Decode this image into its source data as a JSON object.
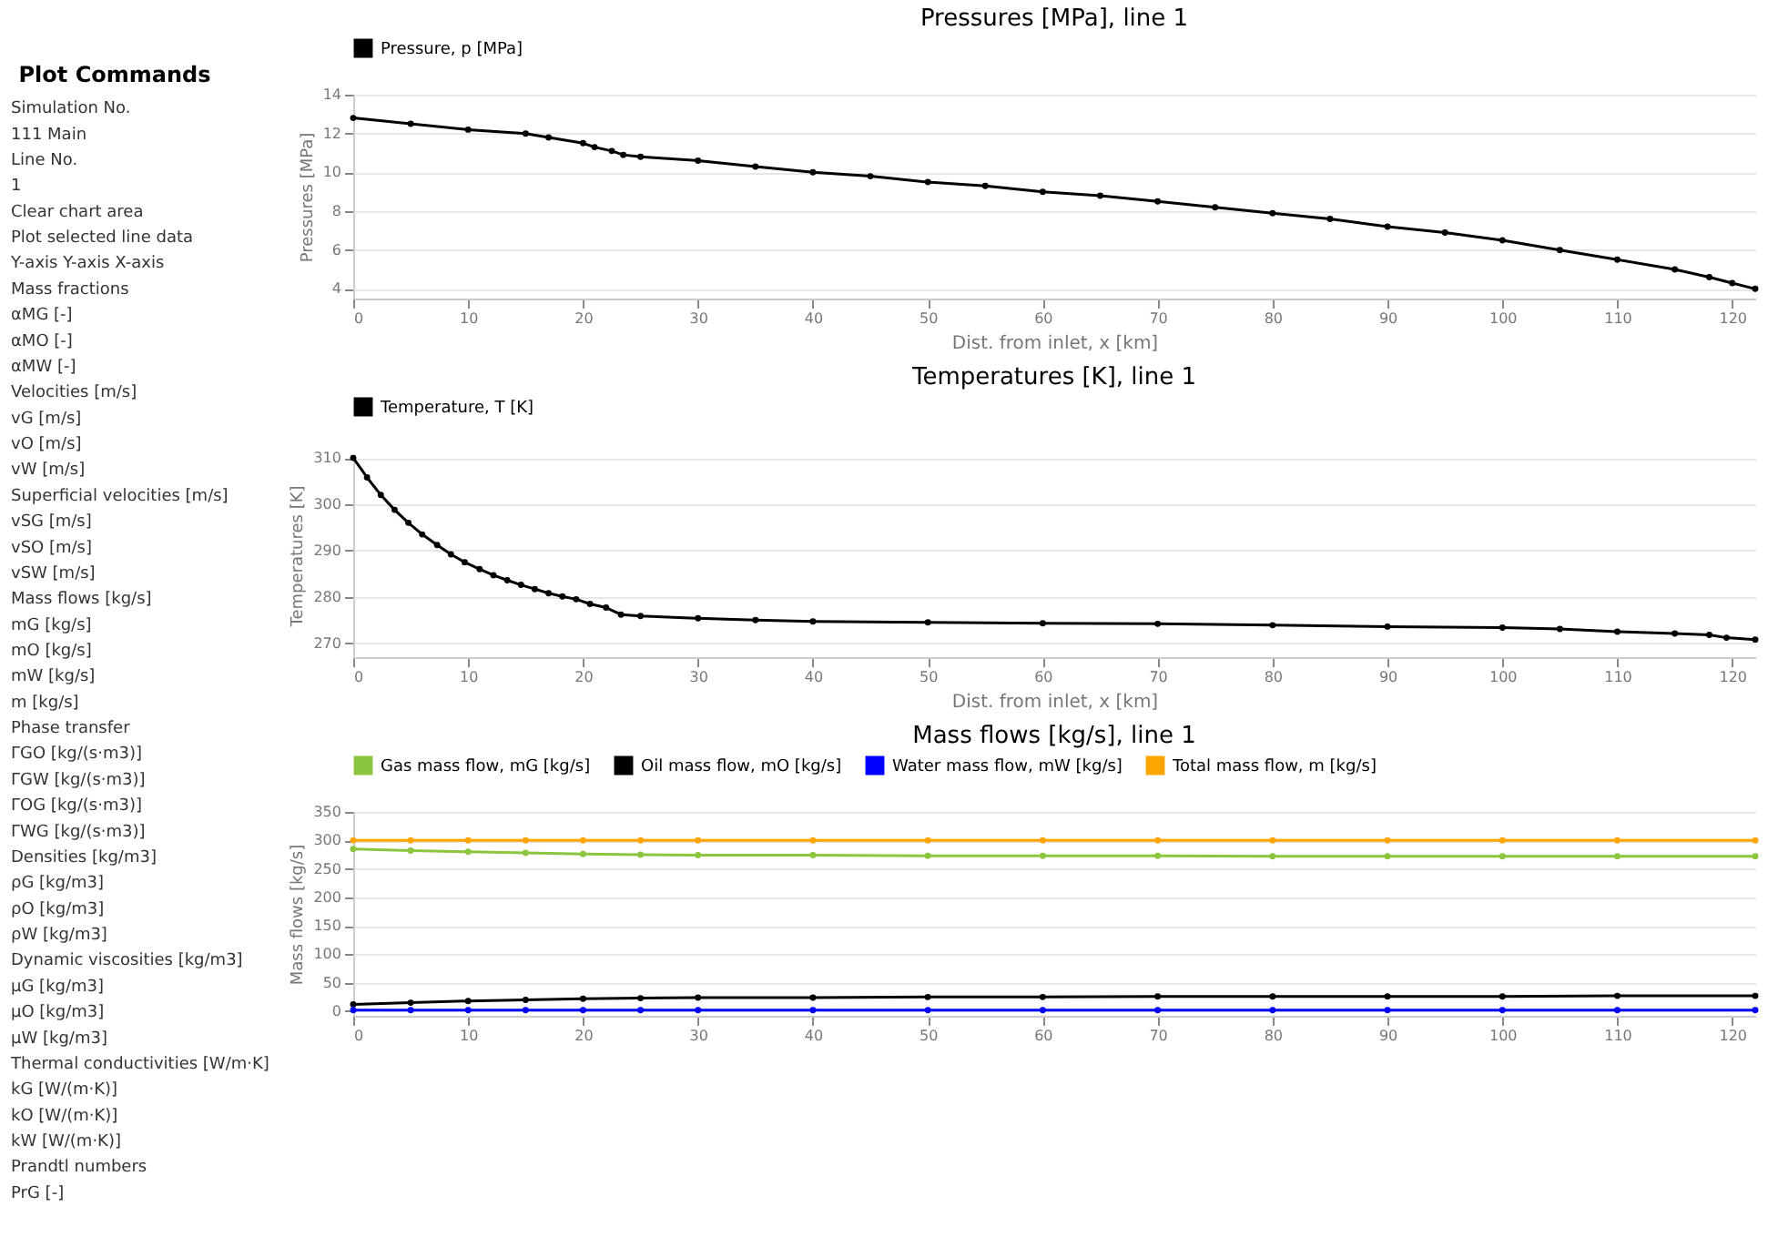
{
  "chart_data": [
    {
      "type": "other",
      "title": "Plot Commands",
      "annotations": [
        "Simulation No.",
        "111 Main",
        "Line No.",
        "1",
        "Clear chart area",
        "Plot selected line data",
        "Y-axis   Y-axis   X-axis",
        "Mass fractions",
        "αMG [-]",
        "αMO [-]",
        "αMW [-]",
        "Velocities [m/s]",
        "vG [m/s]",
        "vO [m/s]",
        "vW [m/s]",
        "Superficial velocities [m/s]",
        "vSG [m/s]",
        "vSO [m/s]",
        "vSW [m/s]",
        "Mass flows [kg/s]",
        "mG [kg/s]",
        "mO [kg/s]",
        "mW [kg/s]",
        "m [kg/s]",
        "Phase transfer",
        "ΓGO [kg/(s·m3)]",
        "ΓGW [kg/(s·m3)]",
        "ΓOG [kg/(s·m3)]",
        "ΓWG [kg/(s·m3)]",
        "Densities [kg/m3]",
        "ρG [kg/m3]",
        "ρO [kg/m3]",
        "ρW [kg/m3]",
        "Dynamic viscosities [kg/m3]",
        "μG [kg/m3]",
        "μO [kg/m3]",
        "μW [kg/m3]",
        "Thermal conductivities [W/m·K]",
        "kG [W/(m·K)]",
        "kO [W/(m·K)]",
        "kW [W/(m·K)]",
        "Prandtl numbers",
        "PrG [-]"
      ]
    },
    {
      "type": "line",
      "title": "Pressures [MPa], line 1",
      "xlabel": "Dist. from inlet, x [km]",
      "ylabel": "Pressures [MPa]",
      "xlim": [
        0,
        122
      ],
      "xticks": [
        0,
        10,
        20,
        30,
        40,
        50,
        60,
        70,
        80,
        90,
        100,
        110,
        120
      ],
      "ylim": [
        3.5,
        14
      ],
      "yticks": [
        4,
        6,
        8,
        10,
        12,
        14
      ],
      "grid": "y",
      "legend": "top",
      "marker": "circle",
      "line_style": "solid",
      "x": [
        0,
        5,
        10,
        15,
        17,
        20,
        21,
        22.5,
        23.5,
        25,
        30,
        35,
        40,
        45,
        50,
        55,
        60,
        65,
        70,
        75,
        80,
        85,
        90,
        95,
        100,
        105,
        110,
        115,
        118,
        120,
        122
      ],
      "series": [
        {
          "name": "Pressure, p [MPa]",
          "color": "#000000",
          "values": [
            12.8,
            12.5,
            12.2,
            12.0,
            11.8,
            11.5,
            11.3,
            11.1,
            10.9,
            10.8,
            10.6,
            10.3,
            10.0,
            9.8,
            9.5,
            9.3,
            9.0,
            8.8,
            8.5,
            8.2,
            7.9,
            7.6,
            7.2,
            6.9,
            6.5,
            6.0,
            5.5,
            5.0,
            4.6,
            4.3,
            4.0
          ]
        }
      ]
    },
    {
      "type": "line",
      "title": "Temperatures [K], line 1",
      "xlabel": "Dist. from inlet, x [km]",
      "ylabel": "Temperatures [K]",
      "xlim": [
        0,
        122
      ],
      "xticks": [
        0,
        10,
        20,
        30,
        40,
        50,
        60,
        70,
        80,
        90,
        100,
        110,
        120
      ],
      "ylim": [
        267,
        311
      ],
      "yticks": [
        270,
        280,
        290,
        300,
        310
      ],
      "grid": "y",
      "legend": "top",
      "marker": "circle",
      "line_style": "solid",
      "x": [
        0,
        1.2,
        2.4,
        3.6,
        4.8,
        6,
        7.3,
        8.5,
        9.7,
        11,
        12.2,
        13.4,
        14.6,
        15.8,
        17,
        18.2,
        19.4,
        20.6,
        22,
        23.3,
        25,
        30,
        35,
        40,
        50,
        60,
        70,
        80,
        90,
        100,
        105,
        110,
        115,
        118,
        119.5,
        122
      ],
      "series": [
        {
          "name": "Temperature, T [K]",
          "color": "#000000",
          "values": [
            310,
            305.8,
            302,
            298.8,
            296,
            293.5,
            291.2,
            289.2,
            287.5,
            286,
            284.7,
            283.6,
            282.6,
            281.7,
            280.8,
            280.1,
            279.5,
            278.5,
            277.7,
            276.2,
            275.9,
            275.4,
            275,
            274.7,
            274.5,
            274.3,
            274.2,
            273.9,
            273.6,
            273.4,
            273.1,
            272.5,
            272.1,
            271.8,
            271.2,
            270.8
          ]
        }
      ]
    },
    {
      "type": "line",
      "title": "Mass flows [kg/s], line 1",
      "ylabel": "Mass flows [kg/s]",
      "xlim": [
        0,
        122
      ],
      "xticks": [
        0,
        10,
        20,
        30,
        40,
        50,
        60,
        70,
        80,
        90,
        100,
        110,
        120
      ],
      "ylim": [
        -8,
        350
      ],
      "yticks": [
        0,
        50,
        100,
        150,
        200,
        250,
        300,
        350
      ],
      "grid": "y",
      "legend": "top",
      "marker": "circle",
      "line_style": "solid",
      "x": [
        0,
        5,
        10,
        15,
        20,
        25,
        30,
        40,
        50,
        60,
        70,
        80,
        90,
        100,
        110,
        122
      ],
      "series": [
        {
          "name": "Gas mass flow, mG [kg/s]",
          "color": "#8cc63f",
          "values": [
            285,
            282,
            280,
            278,
            276,
            275,
            274,
            274,
            273,
            273,
            273,
            272,
            272,
            272,
            272,
            272
          ]
        },
        {
          "name": "Oil mass flow, mO [kg/s]",
          "color": "#000000",
          "values": [
            12,
            15,
            18,
            20,
            22,
            23,
            24,
            24,
            25,
            25,
            26,
            26,
            26,
            26,
            27,
            27
          ]
        },
        {
          "name": "Water mass flow, mW [kg/s]",
          "color": "#0000ff",
          "values": [
            2,
            2,
            2,
            2,
            2,
            2,
            2,
            2,
            2,
            2,
            2,
            2,
            2,
            2,
            2,
            2
          ]
        },
        {
          "name": "Total mass flow, m [kg/s]",
          "color": "#ffa500",
          "values": [
            300,
            300,
            300,
            300,
            300,
            300,
            300,
            300,
            300,
            300,
            300,
            300,
            300,
            300,
            300,
            300
          ]
        }
      ]
    }
  ]
}
